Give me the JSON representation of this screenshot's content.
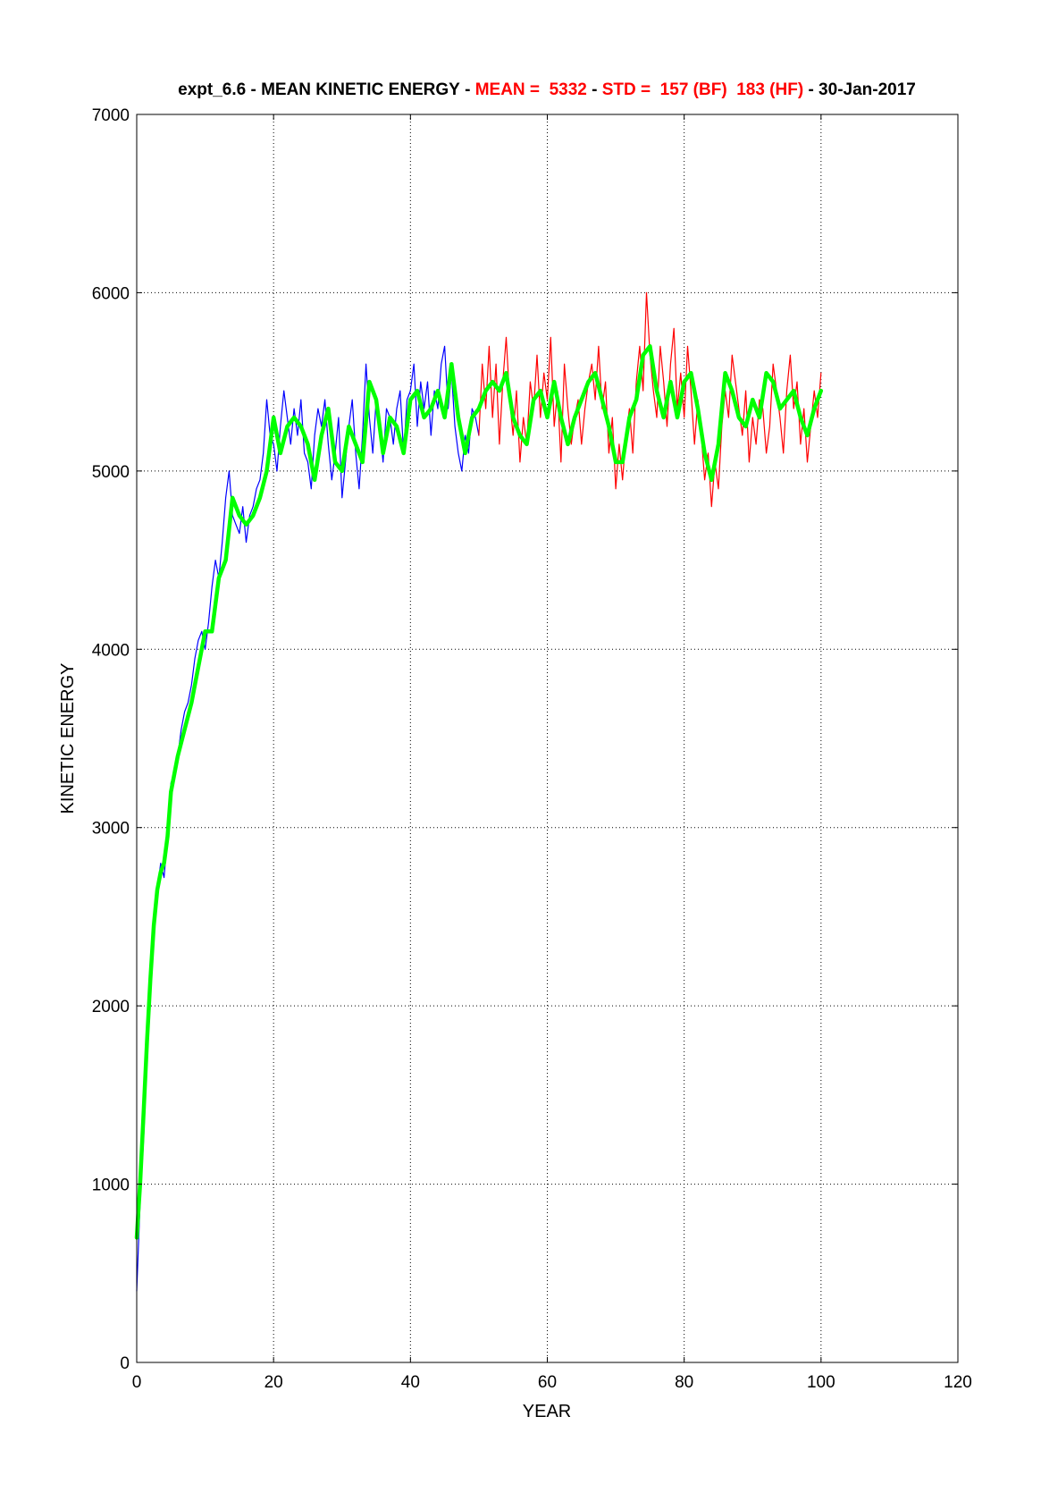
{
  "chart_data": {
    "type": "line",
    "title": {
      "parts": [
        {
          "text": "expt_6.6 - MEAN KINETIC ENERGY - ",
          "color": "#000000"
        },
        {
          "text": "MEAN =  5332",
          "color": "#ff0000"
        },
        {
          "text": " - ",
          "color": "#000000"
        },
        {
          "text": "STD =  157 (BF)  183 (HF)",
          "color": "#ff0000"
        },
        {
          "text": " - 30-Jan-2017",
          "color": "#000000"
        }
      ]
    },
    "xlabel": "YEAR",
    "ylabel": "KINETIC ENERGY",
    "xlim": [
      0,
      120
    ],
    "ylim": [
      0,
      7000
    ],
    "xticks": [
      0,
      20,
      40,
      60,
      80,
      100,
      120
    ],
    "yticks": [
      0,
      1000,
      2000,
      3000,
      4000,
      5000,
      6000,
      7000
    ],
    "grid": true,
    "series": [
      {
        "color": "#0000ff",
        "style": "raw-first-half",
        "x": [
          0,
          0.5,
          1,
          1.5,
          2,
          2.5,
          3,
          3.5,
          4,
          4.5,
          5,
          5.5,
          6,
          6.5,
          7,
          7.5,
          8,
          8.5,
          9,
          9.5,
          10,
          10.5,
          11,
          11.5,
          12,
          12.5,
          13,
          13.5,
          14,
          14.5,
          15,
          15.5,
          16,
          16.5,
          17,
          17.5,
          18,
          18.5,
          19,
          19.5,
          20,
          20.5,
          21,
          21.5,
          22,
          22.5,
          23,
          23.5,
          24,
          24.5,
          25,
          25.5,
          26,
          26.5,
          27,
          27.5,
          28,
          28.5,
          29,
          29.5,
          30,
          30.5,
          31,
          31.5,
          32,
          32.5,
          33,
          33.5,
          34,
          34.5,
          35,
          35.5,
          36,
          36.5,
          37,
          37.5,
          38,
          38.5,
          39,
          39.5,
          40,
          40.5,
          41,
          41.5,
          42,
          42.5,
          43,
          43.5,
          44,
          44.5,
          45,
          45.5,
          46,
          46.5,
          47,
          47.5,
          48,
          48.5,
          49,
          49.5,
          50
        ],
        "y": [
          400,
          900,
          1250,
          1700,
          2100,
          2500,
          2650,
          2800,
          2720,
          2950,
          3250,
          3300,
          3400,
          3550,
          3650,
          3700,
          3800,
          3950,
          4050,
          4100,
          4000,
          4150,
          4350,
          4500,
          4400,
          4600,
          4850,
          5000,
          4750,
          4700,
          4650,
          4800,
          4600,
          4750,
          4800,
          4900,
          4950,
          5100,
          5400,
          5200,
          5150,
          5000,
          5250,
          5450,
          5300,
          5150,
          5350,
          5200,
          5400,
          5100,
          5050,
          4900,
          5200,
          5350,
          5250,
          5400,
          5150,
          4950,
          5100,
          5300,
          4850,
          5050,
          5250,
          5400,
          5100,
          4900,
          5200,
          5600,
          5300,
          5100,
          5400,
          5250,
          5050,
          5350,
          5300,
          5150,
          5350,
          5450,
          5100,
          5400,
          5450,
          5600,
          5250,
          5500,
          5350,
          5500,
          5200,
          5450,
          5350,
          5600,
          5700,
          5350,
          5550,
          5250,
          5100,
          5000,
          5200,
          5100,
          5350,
          5300,
          5200
        ]
      },
      {
        "color": "#ff0000",
        "style": "raw-second-half",
        "x": [
          50,
          50.5,
          51,
          51.5,
          52,
          52.5,
          53,
          53.5,
          54,
          54.5,
          55,
          55.5,
          56,
          56.5,
          57,
          57.5,
          58,
          58.5,
          59,
          59.5,
          60,
          60.5,
          61,
          61.5,
          62,
          62.5,
          63,
          63.5,
          64,
          64.5,
          65,
          65.5,
          66,
          66.5,
          67,
          67.5,
          68,
          68.5,
          69,
          69.5,
          70,
          70.5,
          71,
          71.5,
          72,
          72.5,
          73,
          73.5,
          74,
          74.5,
          75,
          75.5,
          76,
          76.5,
          77,
          77.5,
          78,
          78.5,
          79,
          79.5,
          80,
          80.5,
          81,
          81.5,
          82,
          82.5,
          83,
          83.5,
          84,
          84.5,
          85,
          85.5,
          86,
          86.5,
          87,
          87.5,
          88,
          88.5,
          89,
          89.5,
          90,
          90.5,
          91,
          91.5,
          92,
          92.5,
          93,
          93.5,
          94,
          94.5,
          95,
          95.5,
          96,
          96.5,
          97,
          97.5,
          98,
          98.5,
          99,
          99.5,
          100
        ],
        "y": [
          5200,
          5600,
          5350,
          5700,
          5300,
          5600,
          5150,
          5500,
          5750,
          5400,
          5200,
          5450,
          5050,
          5300,
          5150,
          5500,
          5350,
          5650,
          5300,
          5550,
          5400,
          5750,
          5250,
          5450,
          5050,
          5600,
          5350,
          5150,
          5300,
          5400,
          5150,
          5350,
          5500,
          5600,
          5400,
          5700,
          5350,
          5500,
          5100,
          5300,
          4900,
          5150,
          4950,
          5200,
          5350,
          5100,
          5500,
          5700,
          5450,
          6000,
          5650,
          5450,
          5300,
          5700,
          5500,
          5250,
          5600,
          5800,
          5350,
          5550,
          5300,
          5700,
          5450,
          5150,
          5400,
          5200,
          4950,
          5100,
          4800,
          5050,
          4900,
          5250,
          5450,
          5300,
          5650,
          5500,
          5350,
          5200,
          5450,
          5050,
          5300,
          5150,
          5400,
          5350,
          5100,
          5250,
          5600,
          5450,
          5300,
          5100,
          5450,
          5650,
          5350,
          5500,
          5150,
          5350,
          5050,
          5250,
          5450,
          5300,
          5550
        ]
      },
      {
        "color": "#00ff00",
        "style": "smoothed",
        "x": [
          0,
          0.5,
          1,
          1.5,
          2,
          2.5,
          3,
          3.5,
          4,
          4.5,
          5,
          6,
          7,
          8,
          9,
          10,
          11,
          12,
          13,
          14,
          15,
          16,
          17,
          18,
          19,
          20,
          21,
          22,
          23,
          24,
          25,
          26,
          27,
          28,
          29,
          30,
          31,
          32,
          33,
          34,
          35,
          36,
          37,
          38,
          39,
          40,
          41,
          42,
          43,
          44,
          45,
          46,
          47,
          48,
          49,
          50,
          51,
          52,
          53,
          54,
          55,
          56,
          57,
          58,
          59,
          60,
          61,
          62,
          63,
          64,
          65,
          66,
          67,
          68,
          69,
          70,
          71,
          72,
          73,
          74,
          75,
          76,
          77,
          78,
          79,
          80,
          81,
          82,
          83,
          84,
          85,
          86,
          87,
          88,
          89,
          90,
          91,
          92,
          93,
          94,
          95,
          96,
          97,
          98,
          99,
          100
        ],
        "y": [
          700,
          1000,
          1400,
          1800,
          2150,
          2450,
          2650,
          2750,
          2800,
          2950,
          3200,
          3400,
          3550,
          3700,
          3900,
          4100,
          4100,
          4400,
          4500,
          4850,
          4750,
          4700,
          4750,
          4850,
          5000,
          5300,
          5100,
          5250,
          5300,
          5250,
          5150,
          4950,
          5200,
          5350,
          5050,
          5000,
          5250,
          5150,
          5050,
          5500,
          5400,
          5100,
          5300,
          5250,
          5100,
          5400,
          5450,
          5300,
          5350,
          5450,
          5300,
          5600,
          5300,
          5100,
          5300,
          5350,
          5450,
          5500,
          5450,
          5550,
          5300,
          5200,
          5150,
          5400,
          5450,
          5300,
          5500,
          5300,
          5150,
          5300,
          5400,
          5500,
          5550,
          5400,
          5250,
          5050,
          5050,
          5300,
          5400,
          5650,
          5700,
          5450,
          5300,
          5500,
          5300,
          5500,
          5550,
          5350,
          5100,
          4950,
          5150,
          5550,
          5450,
          5300,
          5250,
          5400,
          5300,
          5550,
          5500,
          5350,
          5400,
          5450,
          5300,
          5200,
          5350,
          5450
        ]
      }
    ]
  }
}
